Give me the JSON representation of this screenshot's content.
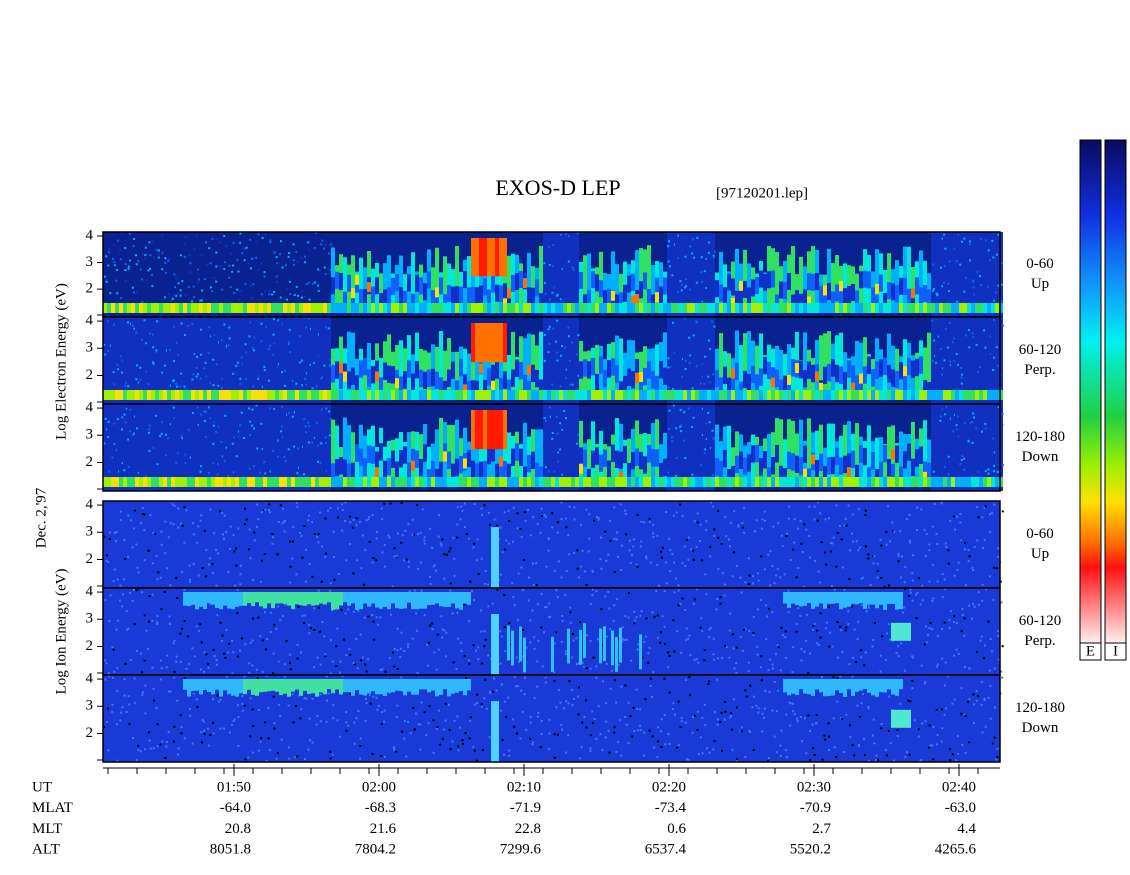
{
  "title": "EXOS-D LEP",
  "file": "[97120201.lep]",
  "date": "Dec. 2,'97",
  "groups": [
    {
      "ylabel": "Log  Electron  Energy (eV)",
      "panels": [
        {
          "label": [
            "0-60",
            "Up"
          ],
          "ylim": [
            0.95,
            4.15
          ],
          "yticks": [
            2,
            3,
            4
          ]
        },
        {
          "label": [
            "60-120",
            "Perp."
          ],
          "ylim": [
            0.95,
            4.15
          ],
          "yticks": [
            2,
            3,
            4
          ]
        },
        {
          "label": [
            "120-180",
            "Down"
          ],
          "ylim": [
            0.95,
            4.15
          ],
          "yticks": [
            2,
            3,
            4
          ]
        }
      ]
    },
    {
      "ylabel": "Log  Ion  Energy (eV)",
      "panels": [
        {
          "label": [
            "0-60",
            "Up"
          ],
          "ylim": [
            0.95,
            4.15
          ],
          "yticks": [
            2,
            3,
            4
          ]
        },
        {
          "label": [
            "60-120",
            "Perp."
          ],
          "ylim": [
            0.95,
            4.15
          ],
          "yticks": [
            2,
            3,
            4
          ]
        },
        {
          "label": [
            "120-180",
            "Down"
          ],
          "ylim": [
            0.95,
            4.15
          ],
          "yticks": [
            2,
            3,
            4
          ]
        }
      ]
    }
  ],
  "ephemeris": [
    {
      "name": "UT",
      "values": [
        "01:50",
        "02:00",
        "02:10",
        "02:20",
        "02:30",
        "02:40"
      ]
    },
    {
      "name": "MLAT",
      "values": [
        "-64.0",
        "-68.3",
        "-71.9",
        "-73.4",
        "-70.9",
        "-63.0"
      ]
    },
    {
      "name": "MLT",
      "values": [
        "20.8",
        "21.6",
        "22.8",
        "0.6",
        "2.7",
        "4.4"
      ]
    },
    {
      "name": "ALT",
      "values": [
        "8051.8",
        "7804.2",
        "7299.6",
        "6537.4",
        "5520.2",
        "4265.6"
      ]
    }
  ],
  "colorbars": [
    "E",
    "I"
  ]
}
